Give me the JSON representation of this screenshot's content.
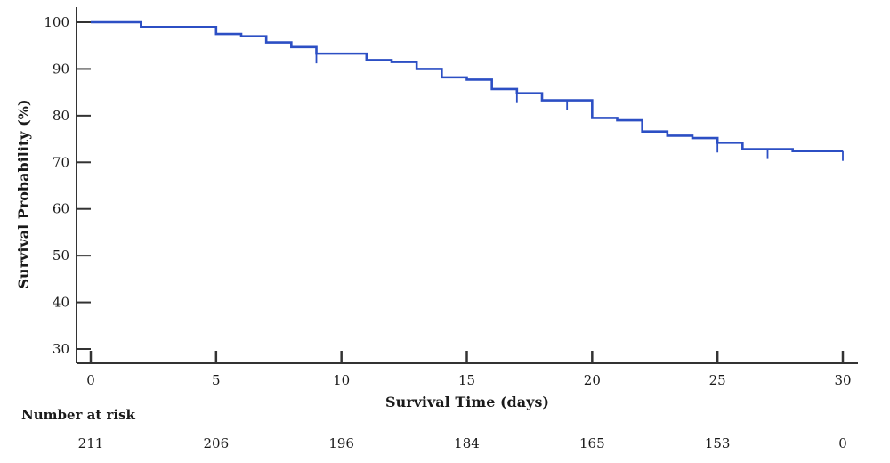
{
  "chart_data": {
    "type": "line",
    "step": true,
    "xlabel": "Survival Time (days)",
    "ylabel": "Survival Probability (%)",
    "xlim": [
      0,
      30
    ],
    "ylim": [
      27,
      103
    ],
    "x_ticks": [
      0,
      5,
      10,
      15,
      20,
      25,
      30
    ],
    "y_ticks": [
      30,
      40,
      50,
      60,
      70,
      80,
      90,
      100
    ],
    "line_color": "#2c4fc4",
    "grid": false,
    "series": [
      {
        "x": [
          0,
          2,
          5,
          6,
          7,
          8,
          9,
          11,
          12,
          13,
          14,
          15,
          16,
          17,
          18,
          20,
          21,
          22,
          23,
          24,
          25,
          26,
          28,
          30
        ],
        "y": [
          100,
          99,
          97.5,
          97,
          95.7,
          94.7,
          93.3,
          91.9,
          91.5,
          90.0,
          88.2,
          87.7,
          85.7,
          84.8,
          83.3,
          79.5,
          79.0,
          76.6,
          75.7,
          75.2,
          74.2,
          72.8,
          72.4,
          72.4
        ]
      }
    ],
    "censor_marks": [
      {
        "x": 9,
        "y": 93.3
      },
      {
        "x": 17,
        "y": 84.8
      },
      {
        "x": 19,
        "y": 83.3
      },
      {
        "x": 25,
        "y": 74.2
      },
      {
        "x": 27,
        "y": 72.8
      },
      {
        "x": 30,
        "y": 72.4
      }
    ]
  },
  "risk_table": {
    "title": "Number at risk",
    "times": [
      0,
      5,
      10,
      15,
      20,
      25,
      30
    ],
    "labels": [
      "211",
      "206",
      "196",
      "184",
      "165",
      "153",
      "0"
    ]
  }
}
